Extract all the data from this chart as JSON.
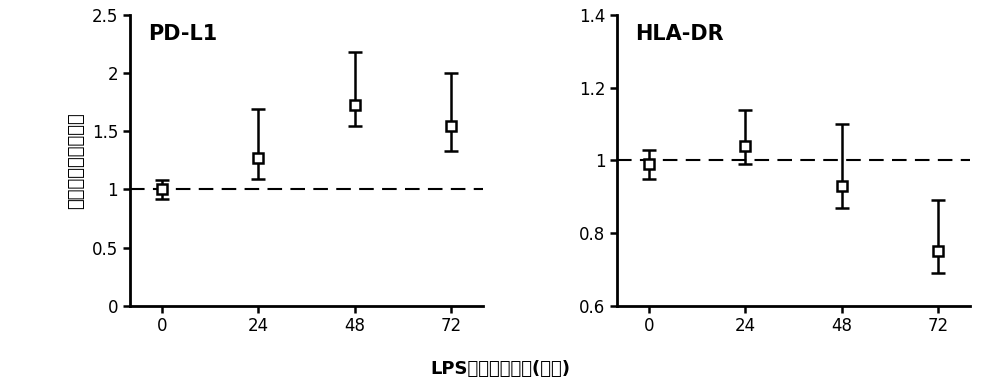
{
  "left_panel": {
    "title": "PD-L1",
    "x": [
      0,
      24,
      48,
      72
    ],
    "y": [
      1.0,
      1.27,
      1.73,
      1.55
    ],
    "yerr_upper": [
      0.08,
      0.42,
      0.45,
      0.45
    ],
    "yerr_lower": [
      0.08,
      0.18,
      0.18,
      0.22
    ],
    "ylim": [
      0,
      2.5
    ],
    "yticks": [
      0,
      0.5,
      1.0,
      1.5,
      2.0,
      2.5
    ],
    "ytick_labels": [
      "0",
      "0.5",
      "1",
      "1.5",
      "2",
      "2.5"
    ],
    "ref_line": 1.0
  },
  "right_panel": {
    "title": "HLA-DR",
    "x": [
      0,
      24,
      48,
      72
    ],
    "y": [
      0.99,
      1.04,
      0.93,
      0.75
    ],
    "yerr_upper": [
      0.04,
      0.1,
      0.17,
      0.14
    ],
    "yerr_lower": [
      0.04,
      0.05,
      0.06,
      0.06
    ],
    "ylim": [
      0.6,
      1.4
    ],
    "yticks": [
      0.6,
      0.8,
      1.0,
      1.2,
      1.4
    ],
    "ytick_labels": [
      "0.6",
      "0.8",
      "1",
      "1.2",
      "1.4"
    ],
    "ref_line": 1.0
  },
  "xlabel": "LPS刺激后的时间(小时)",
  "ylabel": "相对于对照组的表现",
  "line_color": "#000000",
  "marker": "s",
  "marker_size": 7,
  "marker_facecolor": "#ffffff",
  "marker_edgecolor": "#000000",
  "marker_edgewidth": 1.8,
  "line_width": 1.8,
  "dashed_line_color": "#000000",
  "background_color": "#ffffff",
  "font_size_title": 15,
  "font_size_tick": 12,
  "font_size_label": 13,
  "font_size_xlabel": 13
}
